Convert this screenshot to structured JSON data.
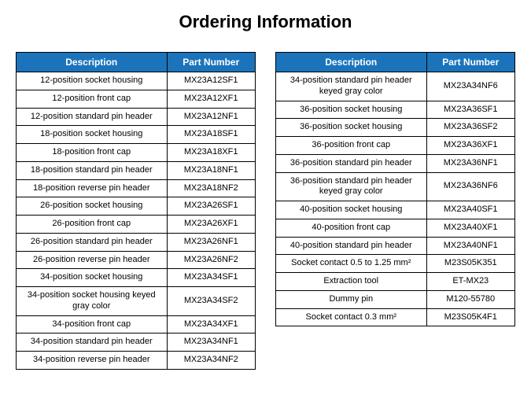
{
  "title": "Ordering Information",
  "headers": {
    "description": "Description",
    "partNumber": "Part Number"
  },
  "table1": {
    "rows": [
      {
        "desc": "12-position socket housing",
        "part": "MX23A12SF1"
      },
      {
        "desc": "12-position front cap",
        "part": "MX23A12XF1"
      },
      {
        "desc": "12-position standard pin header",
        "part": "MX23A12NF1"
      },
      {
        "desc": "18-position socket housing",
        "part": "MX23A18SF1"
      },
      {
        "desc": "18-position front cap",
        "part": "MX23A18XF1"
      },
      {
        "desc": "18-position standard pin header",
        "part": "MX23A18NF1"
      },
      {
        "desc": "18-position reverse pin header",
        "part": "MX23A18NF2"
      },
      {
        "desc": "26-position socket housing",
        "part": "MX23A26SF1"
      },
      {
        "desc": "26-position front cap",
        "part": "MX23A26XF1"
      },
      {
        "desc": "26-position standard pin header",
        "part": "MX23A26NF1"
      },
      {
        "desc": "26-position reverse pin header",
        "part": "MX23A26NF2"
      },
      {
        "desc": "34-position socket housing",
        "part": "MX23A34SF1"
      },
      {
        "desc": "34-position socket housing keyed gray color",
        "part": "MX23A34SF2"
      },
      {
        "desc": "34-position front cap",
        "part": "MX23A34XF1"
      },
      {
        "desc": "34-position standard pin header",
        "part": "MX23A34NF1"
      },
      {
        "desc": "34-position reverse pin header",
        "part": "MX23A34NF2"
      }
    ]
  },
  "table2": {
    "rows": [
      {
        "desc": "34-position standard pin header keyed gray color",
        "part": "MX23A34NF6"
      },
      {
        "desc": "36-position socket housing",
        "part": "MX23A36SF1"
      },
      {
        "desc": "36-position socket housing",
        "part": "MX23A36SF2"
      },
      {
        "desc": "36-position front cap",
        "part": "MX23A36XF1"
      },
      {
        "desc": "36-position standard pin header",
        "part": "MX23A36NF1"
      },
      {
        "desc": "36-position standard pin header keyed gray color",
        "part": "MX23A36NF6"
      },
      {
        "desc": "40-position socket housing",
        "part": "MX23A40SF1"
      },
      {
        "desc": "40-position front cap",
        "part": "MX23A40XF1"
      },
      {
        "desc": "40-position standard pin header",
        "part": "MX23A40NF1"
      },
      {
        "desc": "Socket contact 0.5 to 1.25 mm²",
        "part": "M23S05K351"
      },
      {
        "desc": "Extraction tool",
        "part": "ET-MX23"
      },
      {
        "desc": "Dummy pin",
        "part": "M120-55780"
      },
      {
        "desc": "Socket contact 0.3 mm²",
        "part": "M23S05K4F1"
      }
    ]
  },
  "styling": {
    "header_bg_color": "#1b74bb",
    "header_text_color": "#ffffff",
    "border_color": "#000000",
    "body_bg_color": "#ffffff",
    "title_fontsize": 22,
    "header_fontsize": 12,
    "cell_fontsize": 11
  }
}
